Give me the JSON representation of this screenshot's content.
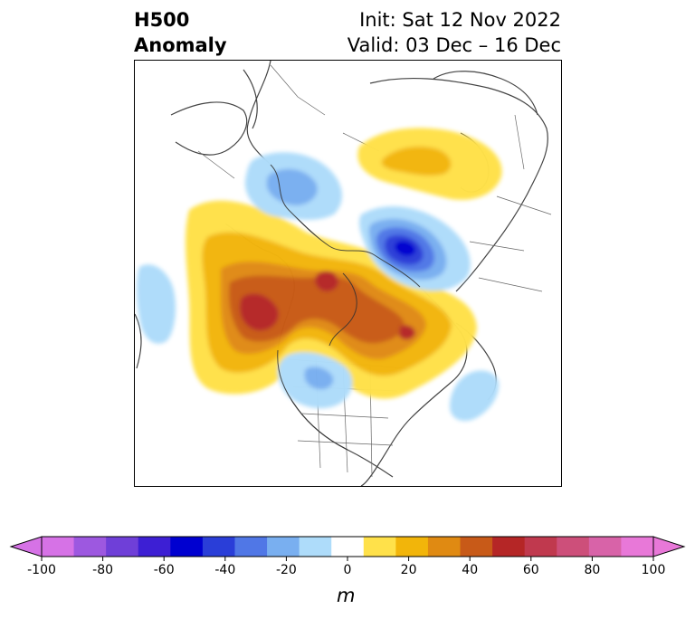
{
  "header": {
    "title_line1": "H500",
    "title_line2": "Anomaly",
    "init_text": "Init: Sat 12 Nov 2022",
    "valid_text": "Valid: 03 Dec – 16 Dec"
  },
  "colorbar": {
    "unit": "m",
    "ticks": [
      "-100",
      "-80",
      "-60",
      "-40",
      "-20",
      "0",
      "20",
      "40",
      "60",
      "80",
      "100"
    ],
    "levels": [
      -100,
      -90,
      -80,
      -70,
      -60,
      -50,
      -40,
      -30,
      -20,
      -10,
      10,
      20,
      30,
      40,
      50,
      60,
      70,
      80,
      90,
      100
    ],
    "colors": [
      "#d672e6",
      "#9d58e0",
      "#6f3fd8",
      "#3d1fd4",
      "#0000d0",
      "#2a3ed8",
      "#5077e6",
      "#79aff0",
      "#aedcfa",
      "#ffffff",
      "#ffe14a",
      "#f2b50a",
      "#e08a12",
      "#c85a18",
      "#b52626",
      "#c0394e",
      "#cd4f7a",
      "#d863a8",
      "#e878d8"
    ],
    "under_color": "#d672e6",
    "over_color": "#e878d8"
  }
}
